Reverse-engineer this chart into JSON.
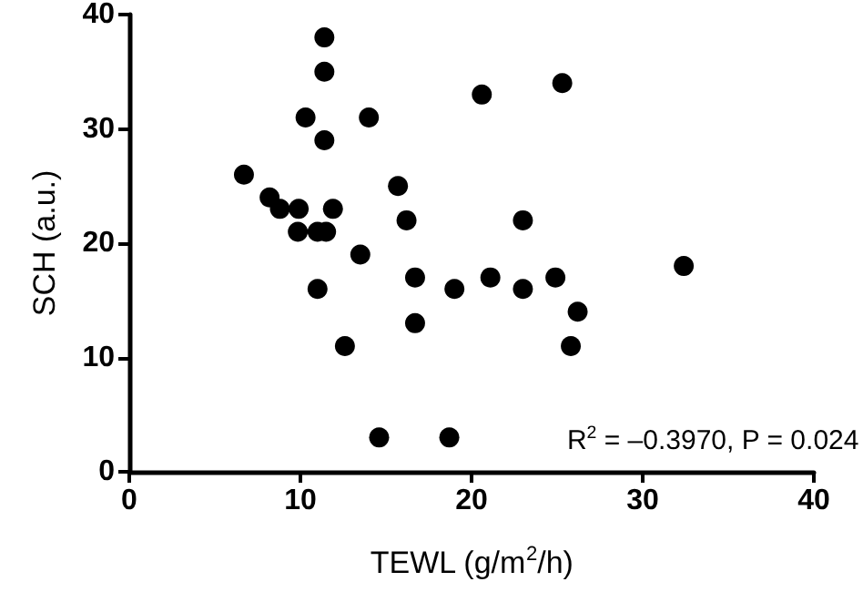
{
  "chart_data": {
    "type": "scatter",
    "xlabel": "TEWL (g/m$^{2}$/h)",
    "ylabel": "SCH (a.u.)",
    "x": [
      6.7,
      8.2,
      8.8,
      9.9,
      9.85,
      10.3,
      11.0,
      11.5,
      11.4,
      11.4,
      11.4,
      11.9,
      11.0,
      12.6,
      13.5,
      14.0,
      14.6,
      15.7,
      16.2,
      16.7,
      16.7,
      18.7,
      19.0,
      20.6,
      21.1,
      23.0,
      23.0,
      24.9,
      25.3,
      26.2,
      25.8,
      32.4
    ],
    "values": [
      26,
      24,
      23,
      23,
      21,
      31,
      21,
      21,
      38,
      35,
      29,
      23,
      16,
      11,
      19,
      31,
      3,
      25,
      22,
      17,
      13,
      3,
      16,
      33,
      17,
      22,
      16,
      17,
      34,
      14,
      11,
      18
    ],
    "color": "#000000",
    "marker": "circle",
    "xlim": [
      0,
      40
    ],
    "xticks": [
      0,
      10,
      20,
      30,
      40
    ],
    "ylim": [
      0,
      40
    ],
    "yticks": [
      0,
      10,
      20,
      30,
      40
    ],
    "annotations": [
      "R$^{2}$ = –0.3970, P = 0.024"
    ]
  }
}
